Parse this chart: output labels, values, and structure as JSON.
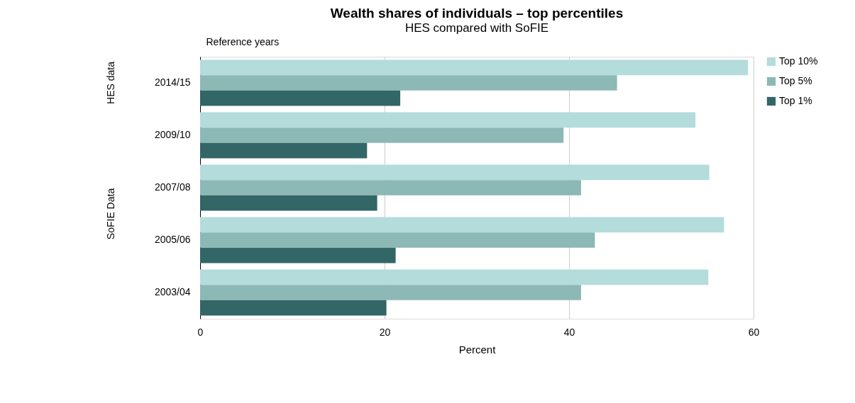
{
  "chart_data": {
    "type": "bar",
    "orientation": "horizontal",
    "title": "Wealth shares of individuals – top percentiles",
    "subtitle": "HES compared with SoFIE",
    "xlabel": "Percent",
    "ylabel": "Reference years",
    "categories": [
      "2014/15",
      "2009/10",
      "2007/08",
      "2005/06",
      "2003/04"
    ],
    "series": [
      {
        "name": "Top 10%",
        "color": "#b3dcdb",
        "values": [
          59.4,
          53.7,
          55.2,
          56.8,
          55.1
        ]
      },
      {
        "name": "Top 5%",
        "color": "#8cb8b6",
        "values": [
          45.2,
          39.4,
          41.3,
          42.8,
          41.3
        ]
      },
      {
        "name": "Top 1%",
        "color": "#336666",
        "values": [
          21.7,
          18.1,
          19.2,
          21.2,
          20.2
        ]
      }
    ],
    "xlim": [
      0,
      60
    ],
    "xticks": [
      0,
      20,
      40,
      60
    ],
    "grid": "x",
    "legend": "top right",
    "annotations": [
      "HES data",
      "SoFIE Data"
    ]
  }
}
